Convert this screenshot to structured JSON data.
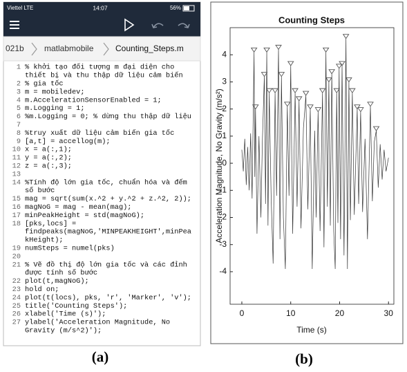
{
  "screenshot": {
    "status": {
      "carrier": "Viettel LTE",
      "time": "14:07",
      "battery": "56%"
    },
    "breadcrumb": [
      "021b",
      "matlabmobile",
      "Counting_Steps.m"
    ],
    "code": [
      {
        "n": 1,
        "lines": [
          "% khởi tạo đối tượng m đại diện cho",
          "thiết bị và thu thập dữ liệu cảm biến"
        ]
      },
      {
        "n": 2,
        "lines": [
          "% gia tốc"
        ]
      },
      {
        "n": 3,
        "lines": [
          "m = mobiledev;"
        ]
      },
      {
        "n": 4,
        "lines": [
          "m.AccelerationSensorEnabled = 1;"
        ]
      },
      {
        "n": 5,
        "lines": [
          "m.Logging = 1;"
        ]
      },
      {
        "n": 6,
        "lines": [
          "%m.Logging = 0; % dừng thu thập dữ liệu"
        ]
      },
      {
        "n": 7,
        "lines": []
      },
      {
        "n": 8,
        "lines": [
          "%truy xuất dữ liệu cảm biến gia tốc"
        ]
      },
      {
        "n": 9,
        "lines": [
          "[a,t] = accellog(m);"
        ]
      },
      {
        "n": 10,
        "lines": [
          "x = a(:,1);"
        ]
      },
      {
        "n": 11,
        "lines": [
          "y = a(:,2);"
        ]
      },
      {
        "n": 12,
        "lines": [
          "z = a(:,3);"
        ]
      },
      {
        "n": 13,
        "lines": []
      },
      {
        "n": 14,
        "lines": [
          "%Tính độ lớn gia tốc, chuẩn hóa và đếm",
          "số bước"
        ]
      },
      {
        "n": 15,
        "lines": [
          "mag = sqrt(sum(x.^2 + y.^2 + z.^2, 2));"
        ]
      },
      {
        "n": 16,
        "lines": [
          "magNoG = mag - mean(mag);"
        ]
      },
      {
        "n": 17,
        "lines": [
          "minPeakHeight = std(magNoG);"
        ]
      },
      {
        "n": 18,
        "lines": [
          "[pks,locs] =",
          "findpeaks(magNoG,'MINPEAKHEIGHT',minPea",
          "kHeight);"
        ]
      },
      {
        "n": 19,
        "lines": [
          "numSteps = numel(pks)"
        ]
      },
      {
        "n": 20,
        "lines": []
      },
      {
        "n": 21,
        "lines": [
          "% Vẽ đồ thị độ lớn gia tốc và các đỉnh",
          "được tính số bước"
        ]
      },
      {
        "n": 22,
        "lines": [
          "plot(t,magNoG);"
        ]
      },
      {
        "n": 23,
        "lines": [
          "hold on;"
        ]
      },
      {
        "n": 24,
        "lines": [
          "plot(t(locs), pks, 'r', 'Marker', 'v');"
        ]
      },
      {
        "n": 25,
        "lines": [
          "title('Counting Steps');"
        ]
      },
      {
        "n": 26,
        "lines": [
          "xlabel('Time (s)');"
        ]
      },
      {
        "n": 27,
        "lines": [
          "ylabel('Acceleration Magnitude, No",
          "Gravity (m/s^2)');"
        ]
      }
    ]
  },
  "chart_data": {
    "type": "line",
    "title": "Counting Steps",
    "x_label": "Time (s)",
    "y_label": "Acceleration Magnitude, No Gravity (m/s²)",
    "xlim": [
      -2.4,
      31.1
    ],
    "ylim": [
      -5.2,
      5
    ],
    "xticks": [
      0,
      10,
      20,
      30
    ],
    "yticks": [
      -4,
      -3,
      -2,
      -1,
      0,
      1,
      2,
      3,
      4
    ],
    "series": [
      {
        "color": "#333333",
        "marker": "none",
        "x": [
          0,
          0.3,
          0.6,
          0.9,
          1.2,
          1.5,
          1.8,
          2.1,
          2.5,
          2.65,
          2.8,
          3.1,
          3.5,
          3.9,
          4.2,
          4.6,
          4.85,
          5.1,
          5.35,
          5.6,
          6.0,
          6.4,
          6.8,
          7.1,
          7.5,
          7.8,
          8.1,
          8.5,
          8.9,
          9.3,
          9.65,
          10.0,
          10.4,
          10.9,
          11.3,
          11.7,
          12.1,
          12.6,
          13.1,
          13.5,
          14.0,
          14.4,
          14.9,
          15.2,
          15.6,
          16.0,
          16.5,
          16.8,
          17.2,
          17.5,
          17.8,
          18.1,
          18.4,
          18.8,
          19.1,
          19.4,
          19.65,
          19.9,
          20.2,
          20.5,
          20.9,
          21.3,
          21.6,
          21.9,
          22.2,
          22.6,
          23.0,
          23.6,
          23.9,
          24.3,
          24.7,
          25.2,
          25.7,
          26.3,
          26.7,
          27.1,
          27.5,
          27.9,
          28.3,
          28.7,
          29.1,
          29.5,
          30
        ],
        "values": [
          0.5,
          -0.3,
          0.9,
          -0.8,
          0.6,
          -1.0,
          1.1,
          -1.3,
          4.1,
          -0.5,
          2.0,
          -2.6,
          1.0,
          -2.0,
          0.8,
          3.2,
          -1.5,
          4.1,
          -2.3,
          2.6,
          -1.3,
          -3.7,
          2.6,
          -1.2,
          4.2,
          -2.8,
          3.2,
          -2.0,
          -3.9,
          2.1,
          -1.2,
          3.6,
          -2.6,
          2.6,
          -1.6,
          2.3,
          -2.4,
          1.3,
          2.5,
          -1.7,
          2.0,
          -3.9,
          1.2,
          -2.0,
          1.9,
          -2.5,
          2.6,
          -3.1,
          4.1,
          -1.6,
          3.0,
          -2.3,
          3.3,
          -2.5,
          -3.9,
          2.6,
          -2.2,
          3.5,
          -2.8,
          3.6,
          -3.4,
          4.6,
          -3.9,
          3.0,
          -2.1,
          2.6,
          -1.9,
          2.0,
          -1.5,
          1.9,
          -1.8,
          0.9,
          -2.8,
          2.1,
          -1.4,
          0.8,
          1.2,
          -0.9,
          0.7,
          -0.6,
          0.5,
          -0.3,
          0.2
        ]
      },
      {
        "color": "#555555",
        "marker": "v",
        "x": [
          2.5,
          2.8,
          4.6,
          5.1,
          5.6,
          6.8,
          7.5,
          8.1,
          9.3,
          10.0,
          10.9,
          11.7,
          13.1,
          14.0,
          15.6,
          16.5,
          17.2,
          17.8,
          18.4,
          19.4,
          19.9,
          20.5,
          21.3,
          21.9,
          22.6,
          23.6,
          24.3,
          26.3,
          27.5
        ],
        "values": [
          4.1,
          2.0,
          3.2,
          4.1,
          2.6,
          2.6,
          4.2,
          3.2,
          2.1,
          3.6,
          2.6,
          2.3,
          2.5,
          2.0,
          1.9,
          2.6,
          4.1,
          3.0,
          3.3,
          2.6,
          3.5,
          3.6,
          4.6,
          3.0,
          2.6,
          2.0,
          1.9,
          2.1,
          1.2
        ]
      }
    ]
  },
  "captions": [
    "(a)",
    "(b)"
  ]
}
